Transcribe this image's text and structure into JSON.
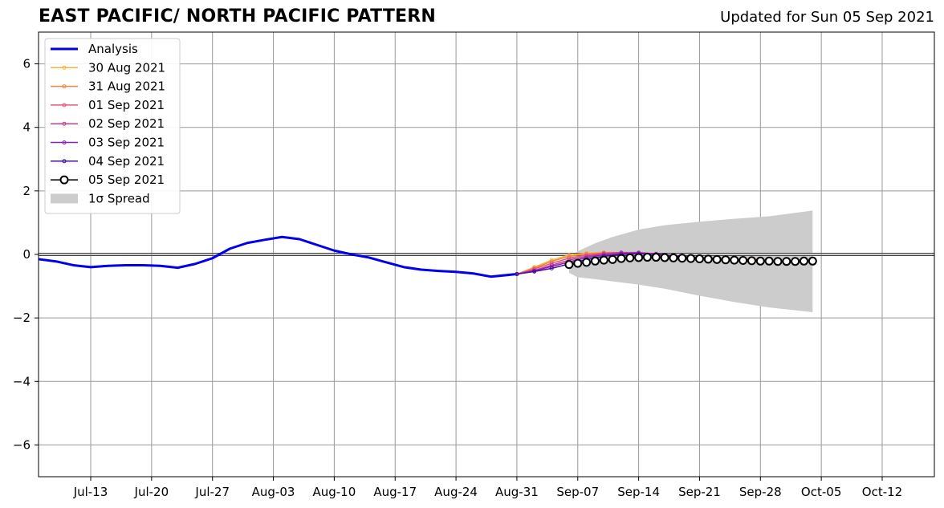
{
  "header": {
    "title": "EAST PACIFIC/ NORTH PACIFIC PATTERN",
    "updated": "Updated for Sun 05 Sep 2021"
  },
  "chart_data": {
    "type": "line",
    "title": "EAST PACIFIC/ NORTH PACIFIC PATTERN",
    "subtitle": "Updated for Sun 05 Sep 2021",
    "xlabel": "",
    "ylabel": "",
    "xlim": [
      "2021-07-07",
      "2021-10-18"
    ],
    "ylim": [
      -7,
      7
    ],
    "grid": true,
    "legend_position": "upper-left",
    "x_ticks": [
      "Jul-13",
      "Jul-20",
      "Jul-27",
      "Aug-03",
      "Aug-10",
      "Aug-17",
      "Aug-24",
      "Aug-31",
      "Sep-07",
      "Sep-14",
      "Sep-21",
      "Sep-28",
      "Oct-05",
      "Oct-12"
    ],
    "x_tick_dates": [
      "2021-07-13",
      "2021-07-20",
      "2021-07-27",
      "2021-08-03",
      "2021-08-10",
      "2021-08-17",
      "2021-08-24",
      "2021-08-31",
      "2021-09-07",
      "2021-09-14",
      "2021-09-21",
      "2021-09-28",
      "2021-10-05",
      "2021-10-12"
    ],
    "y_ticks": [
      6,
      4,
      2,
      0,
      -2,
      -4,
      -6
    ],
    "y_tick_labels": [
      "6",
      "4",
      "2",
      "0",
      "−2",
      "−4",
      "−6"
    ],
    "series": [
      {
        "name": "Analysis",
        "color": "#0000ee",
        "style": "line",
        "points": [
          [
            "2021-07-07",
            -0.15
          ],
          [
            "2021-07-09",
            -0.22
          ],
          [
            "2021-07-11",
            -0.34
          ],
          [
            "2021-07-13",
            -0.4
          ],
          [
            "2021-07-15",
            -0.36
          ],
          [
            "2021-07-17",
            -0.34
          ],
          [
            "2021-07-19",
            -0.34
          ],
          [
            "2021-07-21",
            -0.36
          ],
          [
            "2021-07-23",
            -0.42
          ],
          [
            "2021-07-25",
            -0.3
          ],
          [
            "2021-07-27",
            -0.12
          ],
          [
            "2021-07-29",
            0.18
          ],
          [
            "2021-07-31",
            0.36
          ],
          [
            "2021-08-02",
            0.46
          ],
          [
            "2021-08-04",
            0.55
          ],
          [
            "2021-08-06",
            0.48
          ],
          [
            "2021-08-08",
            0.3
          ],
          [
            "2021-08-10",
            0.12
          ],
          [
            "2021-08-12",
            0.0
          ],
          [
            "2021-08-14",
            -0.1
          ],
          [
            "2021-08-16",
            -0.25
          ],
          [
            "2021-08-18",
            -0.4
          ],
          [
            "2021-08-20",
            -0.48
          ],
          [
            "2021-08-22",
            -0.52
          ],
          [
            "2021-08-24",
            -0.55
          ],
          [
            "2021-08-26",
            -0.6
          ],
          [
            "2021-08-28",
            -0.7
          ],
          [
            "2021-08-31",
            -0.62
          ]
        ]
      },
      {
        "name": "30 Aug 2021",
        "color": "#f5b942",
        "style": "small-markers",
        "points": [
          [
            "2021-08-31",
            -0.62
          ],
          [
            "2021-09-02",
            -0.4
          ],
          [
            "2021-09-04",
            -0.18
          ],
          [
            "2021-09-06",
            -0.02
          ],
          [
            "2021-09-08",
            0.04
          ],
          [
            "2021-09-10",
            0.07
          ],
          [
            "2021-09-12",
            0.06
          ],
          [
            "2021-09-14",
            0.05
          ],
          [
            "2021-09-16",
            0.0
          ],
          [
            "2021-09-18",
            -0.05
          ],
          [
            "2021-09-20",
            -0.08
          ],
          [
            "2021-09-22",
            -0.1
          ],
          [
            "2021-09-24",
            -0.12
          ],
          [
            "2021-09-26",
            -0.14
          ],
          [
            "2021-09-28",
            -0.15
          ]
        ]
      },
      {
        "name": "31 Aug 2021",
        "color": "#f0883e",
        "style": "small-markers",
        "points": [
          [
            "2021-08-31",
            -0.62
          ],
          [
            "2021-09-02",
            -0.43
          ],
          [
            "2021-09-04",
            -0.22
          ],
          [
            "2021-09-06",
            -0.06
          ],
          [
            "2021-09-08",
            0.02
          ],
          [
            "2021-09-10",
            0.05
          ],
          [
            "2021-09-12",
            0.05
          ],
          [
            "2021-09-14",
            0.03
          ],
          [
            "2021-09-16",
            -0.02
          ],
          [
            "2021-09-18",
            -0.06
          ],
          [
            "2021-09-20",
            -0.1
          ],
          [
            "2021-09-22",
            -0.13
          ],
          [
            "2021-09-24",
            -0.15
          ],
          [
            "2021-09-26",
            -0.16
          ],
          [
            "2021-09-28",
            -0.17
          ],
          [
            "2021-09-29",
            -0.18
          ]
        ]
      },
      {
        "name": "01 Sep 2021",
        "color": "#e05a78",
        "style": "small-markers",
        "points": [
          [
            "2021-08-31",
            -0.62
          ],
          [
            "2021-09-02",
            -0.46
          ],
          [
            "2021-09-04",
            -0.28
          ],
          [
            "2021-09-06",
            -0.12
          ],
          [
            "2021-09-08",
            -0.02
          ],
          [
            "2021-09-10",
            0.04
          ],
          [
            "2021-09-12",
            0.06
          ],
          [
            "2021-09-14",
            0.05
          ],
          [
            "2021-09-16",
            0.0
          ],
          [
            "2021-09-18",
            -0.05
          ],
          [
            "2021-09-20",
            -0.09
          ],
          [
            "2021-09-22",
            -0.12
          ],
          [
            "2021-09-24",
            -0.15
          ],
          [
            "2021-09-26",
            -0.17
          ],
          [
            "2021-09-28",
            -0.19
          ],
          [
            "2021-09-30",
            -0.2
          ]
        ]
      },
      {
        "name": "02 Sep 2021",
        "color": "#c43a9e",
        "style": "small-markers",
        "points": [
          [
            "2021-08-31",
            -0.62
          ],
          [
            "2021-09-02",
            -0.5
          ],
          [
            "2021-09-04",
            -0.34
          ],
          [
            "2021-09-06",
            -0.18
          ],
          [
            "2021-09-08",
            -0.06
          ],
          [
            "2021-09-10",
            0.02
          ],
          [
            "2021-09-12",
            0.06
          ],
          [
            "2021-09-14",
            0.06
          ],
          [
            "2021-09-16",
            0.02
          ],
          [
            "2021-09-18",
            -0.04
          ],
          [
            "2021-09-20",
            -0.08
          ],
          [
            "2021-09-22",
            -0.12
          ],
          [
            "2021-09-24",
            -0.15
          ],
          [
            "2021-09-26",
            -0.18
          ],
          [
            "2021-09-28",
            -0.2
          ],
          [
            "2021-10-01",
            -0.22
          ]
        ]
      },
      {
        "name": "03 Sep 2021",
        "color": "#8e1fb8",
        "style": "small-markers",
        "points": [
          [
            "2021-08-31",
            -0.62
          ],
          [
            "2021-09-02",
            -0.52
          ],
          [
            "2021-09-04",
            -0.38
          ],
          [
            "2021-09-06",
            -0.24
          ],
          [
            "2021-09-08",
            -0.1
          ],
          [
            "2021-09-10",
            -0.02
          ],
          [
            "2021-09-12",
            0.03
          ],
          [
            "2021-09-14",
            0.04
          ],
          [
            "2021-09-16",
            0.01
          ],
          [
            "2021-09-18",
            -0.04
          ],
          [
            "2021-09-20",
            -0.09
          ],
          [
            "2021-09-22",
            -0.13
          ],
          [
            "2021-09-24",
            -0.16
          ],
          [
            "2021-09-26",
            -0.19
          ],
          [
            "2021-09-28",
            -0.21
          ],
          [
            "2021-10-02",
            -0.22
          ]
        ]
      },
      {
        "name": "04 Sep 2021",
        "color": "#4b0f99",
        "style": "small-markers",
        "points": [
          [
            "2021-08-31",
            -0.62
          ],
          [
            "2021-09-02",
            -0.54
          ],
          [
            "2021-09-04",
            -0.44
          ],
          [
            "2021-09-06",
            -0.3
          ],
          [
            "2021-09-08",
            -0.16
          ],
          [
            "2021-09-10",
            -0.06
          ],
          [
            "2021-09-12",
            0.0
          ],
          [
            "2021-09-14",
            0.02
          ],
          [
            "2021-09-16",
            0.0
          ],
          [
            "2021-09-18",
            -0.05
          ],
          [
            "2021-09-20",
            -0.1
          ],
          [
            "2021-09-22",
            -0.14
          ],
          [
            "2021-09-24",
            -0.17
          ],
          [
            "2021-09-26",
            -0.2
          ],
          [
            "2021-09-28",
            -0.22
          ],
          [
            "2021-10-03",
            -0.22
          ]
        ]
      },
      {
        "name": "05 Sep 2021",
        "color": "#000000",
        "style": "open-circles",
        "points": [
          [
            "2021-09-06",
            -0.32
          ],
          [
            "2021-09-07",
            -0.28
          ],
          [
            "2021-09-08",
            -0.25
          ],
          [
            "2021-09-09",
            -0.21
          ],
          [
            "2021-09-10",
            -0.18
          ],
          [
            "2021-09-11",
            -0.16
          ],
          [
            "2021-09-12",
            -0.13
          ],
          [
            "2021-09-13",
            -0.11
          ],
          [
            "2021-09-14",
            -0.1
          ],
          [
            "2021-09-15",
            -0.09
          ],
          [
            "2021-09-16",
            -0.09
          ],
          [
            "2021-09-17",
            -0.1
          ],
          [
            "2021-09-18",
            -0.11
          ],
          [
            "2021-09-19",
            -0.12
          ],
          [
            "2021-09-20",
            -0.13
          ],
          [
            "2021-09-21",
            -0.14
          ],
          [
            "2021-09-22",
            -0.15
          ],
          [
            "2021-09-23",
            -0.16
          ],
          [
            "2021-09-24",
            -0.17
          ],
          [
            "2021-09-25",
            -0.18
          ],
          [
            "2021-09-26",
            -0.19
          ],
          [
            "2021-09-27",
            -0.2
          ],
          [
            "2021-09-28",
            -0.21
          ],
          [
            "2021-09-29",
            -0.21
          ],
          [
            "2021-09-30",
            -0.22
          ],
          [
            "2021-10-01",
            -0.22
          ],
          [
            "2021-10-02",
            -0.22
          ],
          [
            "2021-10-03",
            -0.21
          ],
          [
            "2021-10-04",
            -0.21
          ]
        ]
      }
    ],
    "spread": {
      "name": "1σ Spread",
      "color": "#cccccc",
      "upper": [
        [
          "2021-09-06",
          -0.1
        ],
        [
          "2021-09-07",
          0.1
        ],
        [
          "2021-09-09",
          0.35
        ],
        [
          "2021-09-11",
          0.55
        ],
        [
          "2021-09-14",
          0.78
        ],
        [
          "2021-09-17",
          0.92
        ],
        [
          "2021-09-21",
          1.03
        ],
        [
          "2021-09-25",
          1.12
        ],
        [
          "2021-09-29",
          1.2
        ],
        [
          "2021-10-04",
          1.38
        ]
      ],
      "lower": [
        [
          "2021-09-06",
          -0.58
        ],
        [
          "2021-09-07",
          -0.72
        ],
        [
          "2021-09-09",
          -0.78
        ],
        [
          "2021-09-11",
          -0.85
        ],
        [
          "2021-09-14",
          -0.95
        ],
        [
          "2021-09-17",
          -1.08
        ],
        [
          "2021-09-21",
          -1.3
        ],
        [
          "2021-09-25",
          -1.5
        ],
        [
          "2021-09-29",
          -1.67
        ],
        [
          "2021-10-04",
          -1.82
        ]
      ]
    }
  }
}
